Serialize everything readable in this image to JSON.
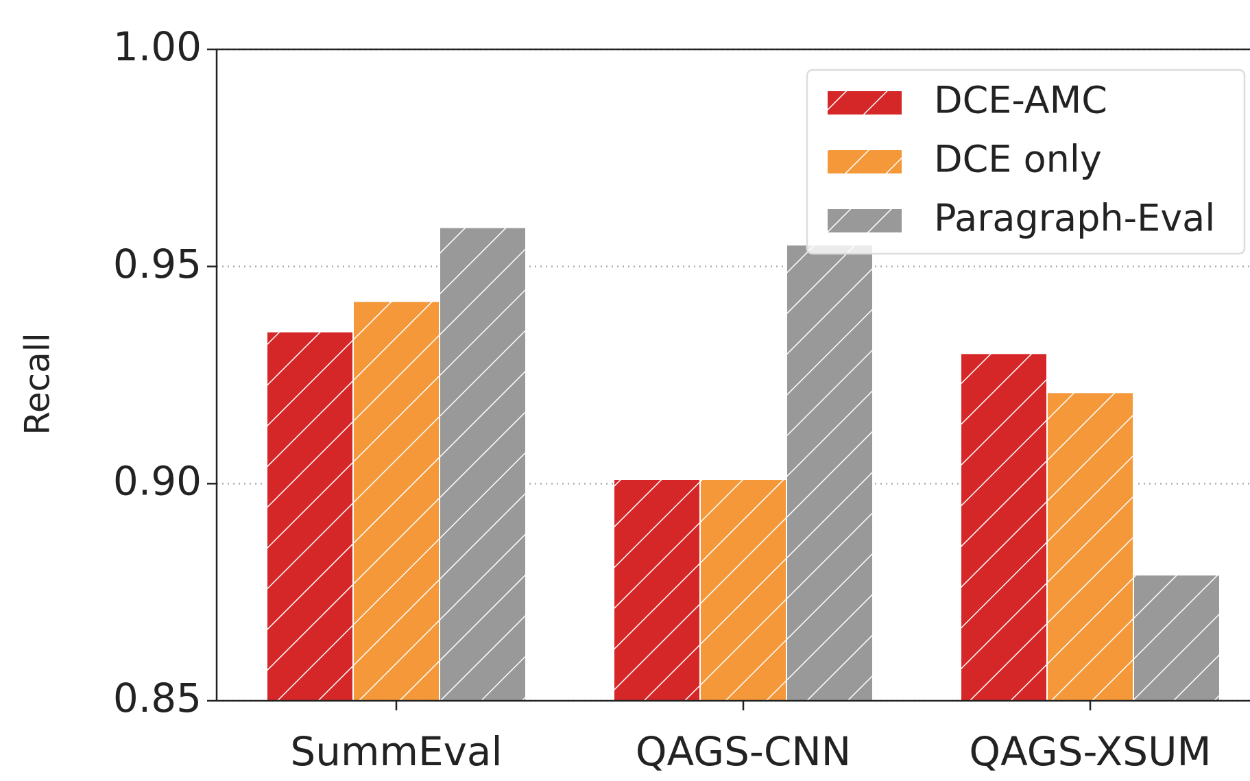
{
  "chart_data": {
    "type": "bar",
    "ylabel": "Recall",
    "categories": [
      "SummEval",
      "QAGS-CNN",
      "QAGS-XSUM"
    ],
    "series": [
      {
        "name": "DCE-AMC",
        "color": "#d62728",
        "values": [
          0.935,
          0.901,
          0.93
        ]
      },
      {
        "name": "DCE only",
        "color": "#f5983a",
        "values": [
          0.942,
          0.901,
          0.921
        ]
      },
      {
        "name": "Paragraph-Eval",
        "color": "#999999",
        "values": [
          0.959,
          0.955,
          0.879
        ]
      }
    ],
    "ylim": [
      0.85,
      1.0
    ],
    "yticks": [
      {
        "value": 0.85,
        "label": "0.85"
      },
      {
        "value": 0.9,
        "label": "0.90"
      },
      0.95,
      {
        "value": 1.0,
        "label": "1.00"
      }
    ],
    "grid": true,
    "hatch": true,
    "legend": "upper right"
  }
}
